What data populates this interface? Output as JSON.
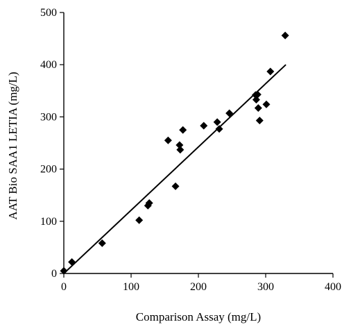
{
  "chart_data": {
    "type": "scatter",
    "title": "",
    "xlabel": "Comparison Assay (mg/L)",
    "ylabel": "AAT Bio SAA1 LETIA (mg/L)",
    "xlim": [
      0,
      400
    ],
    "ylim": [
      0,
      500
    ],
    "x_ticks": [
      0,
      100,
      200,
      300,
      400
    ],
    "y_ticks": [
      0,
      100,
      200,
      300,
      400,
      500
    ],
    "grid": false,
    "legend": "none",
    "marker": "diamond",
    "marker_color": "#000000",
    "line_color": "#000000",
    "points": [
      {
        "x": 0,
        "y": 5
      },
      {
        "x": 12,
        "y": 22
      },
      {
        "x": 57,
        "y": 58
      },
      {
        "x": 112,
        "y": 102
      },
      {
        "x": 125,
        "y": 130
      },
      {
        "x": 127,
        "y": 135
      },
      {
        "x": 155,
        "y": 255
      },
      {
        "x": 166,
        "y": 167
      },
      {
        "x": 172,
        "y": 246
      },
      {
        "x": 173,
        "y": 237
      },
      {
        "x": 177,
        "y": 275
      },
      {
        "x": 208,
        "y": 283
      },
      {
        "x": 228,
        "y": 290
      },
      {
        "x": 231,
        "y": 277
      },
      {
        "x": 246,
        "y": 307
      },
      {
        "x": 285,
        "y": 342
      },
      {
        "x": 286,
        "y": 333
      },
      {
        "x": 288,
        "y": 343
      },
      {
        "x": 289,
        "y": 317
      },
      {
        "x": 291,
        "y": 293
      },
      {
        "x": 301,
        "y": 324
      },
      {
        "x": 307,
        "y": 387
      },
      {
        "x": 329,
        "y": 456
      }
    ],
    "trendline": {
      "x": [
        0,
        330
      ],
      "y": [
        0,
        400
      ]
    }
  }
}
